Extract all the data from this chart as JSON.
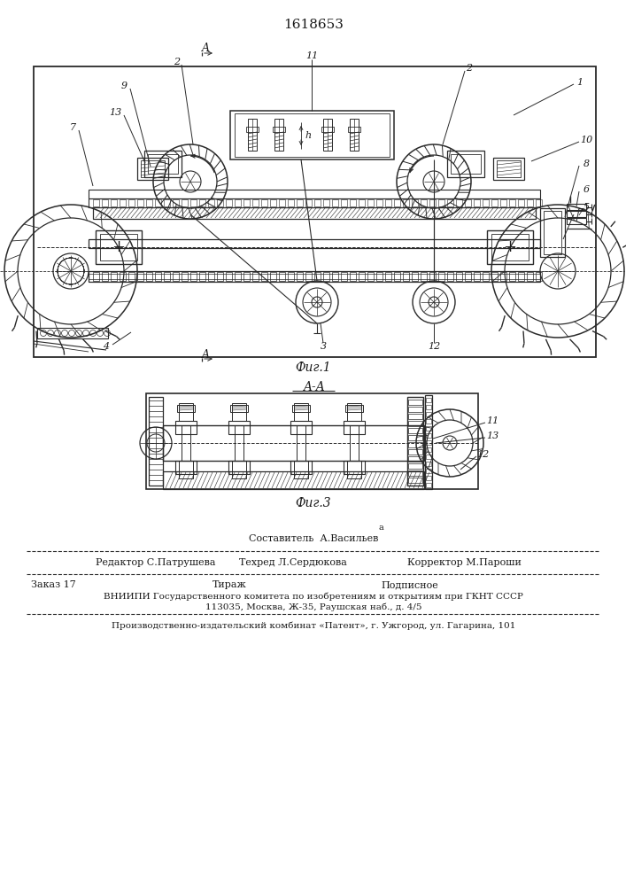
{
  "patent_number": "1618653",
  "fig1_caption": "Фиг.1",
  "fig3_caption": "Фиг.3",
  "section_label": "A-A",
  "line_color": "#2a2a2a",
  "text_color": "#1a1a1a",
  "footer_line1_top": "Составитель  А.Васильев",
  "footer_line1_left": "Редактор С.Патрушева",
  "footer_line1_mid": "Техред Л.Сердюкова",
  "footer_line1_right": "Корректор М.Пароши",
  "footer_line2_left": "Заказ 17",
  "footer_line2_mid": "Тираж",
  "footer_line2_right": "Подписное",
  "footer_line3": "ВНИИПИ Государственного комитета по изобретениям и открытиям при ГКНТ СССР",
  "footer_line4": "113035, Москва, Ж-35, Раушская наб., д. 4/5",
  "footer_line5": "Производственно-издательский комбинат «Патент», г. Ужгород, ул. Гагарина, 101"
}
